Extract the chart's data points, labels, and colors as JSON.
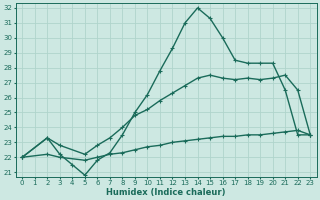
{
  "xlabel": "Humidex (Indice chaleur)",
  "xlim": [
    -0.5,
    23.5
  ],
  "ylim": [
    20.7,
    32.3
  ],
  "xticks": [
    0,
    1,
    2,
    3,
    4,
    5,
    6,
    7,
    8,
    9,
    10,
    11,
    12,
    13,
    14,
    15,
    16,
    17,
    18,
    19,
    20,
    21,
    22,
    23
  ],
  "yticks": [
    21,
    22,
    23,
    24,
    25,
    26,
    27,
    28,
    29,
    30,
    31,
    32
  ],
  "bg_color": "#cde8e2",
  "grid_color": "#b0d4cc",
  "line_color": "#1a6b5a",
  "line1_x": [
    0,
    2,
    3,
    4,
    5,
    6,
    7,
    8,
    9,
    10,
    11,
    12,
    13,
    14,
    15,
    16,
    17,
    18,
    19,
    20,
    21,
    22,
    23
  ],
  "line1_y": [
    22.0,
    23.3,
    22.2,
    21.5,
    20.8,
    21.8,
    22.3,
    23.5,
    25.0,
    26.2,
    27.8,
    29.3,
    31.0,
    32.0,
    31.3,
    30.0,
    28.5,
    28.3,
    28.3,
    28.3,
    26.5,
    23.5,
    23.5
  ],
  "line2_x": [
    0,
    2,
    3,
    5,
    6,
    7,
    8,
    9,
    10,
    11,
    12,
    13,
    14,
    15,
    16,
    17,
    18,
    19,
    20,
    21,
    22,
    23
  ],
  "line2_y": [
    22.0,
    23.3,
    22.8,
    22.2,
    22.8,
    23.3,
    24.0,
    24.8,
    25.2,
    25.8,
    26.3,
    26.8,
    27.3,
    27.5,
    27.3,
    27.2,
    27.3,
    27.2,
    27.3,
    27.5,
    26.5,
    23.5
  ],
  "line3_x": [
    0,
    2,
    3,
    5,
    6,
    7,
    8,
    9,
    10,
    11,
    12,
    13,
    14,
    15,
    16,
    17,
    18,
    19,
    20,
    21,
    22,
    23
  ],
  "line3_y": [
    22.0,
    22.2,
    22.0,
    21.8,
    22.0,
    22.2,
    22.3,
    22.5,
    22.7,
    22.8,
    23.0,
    23.1,
    23.2,
    23.3,
    23.4,
    23.4,
    23.5,
    23.5,
    23.6,
    23.7,
    23.8,
    23.5
  ],
  "marker": "+",
  "markersize": 3.5,
  "linewidth": 1.0
}
